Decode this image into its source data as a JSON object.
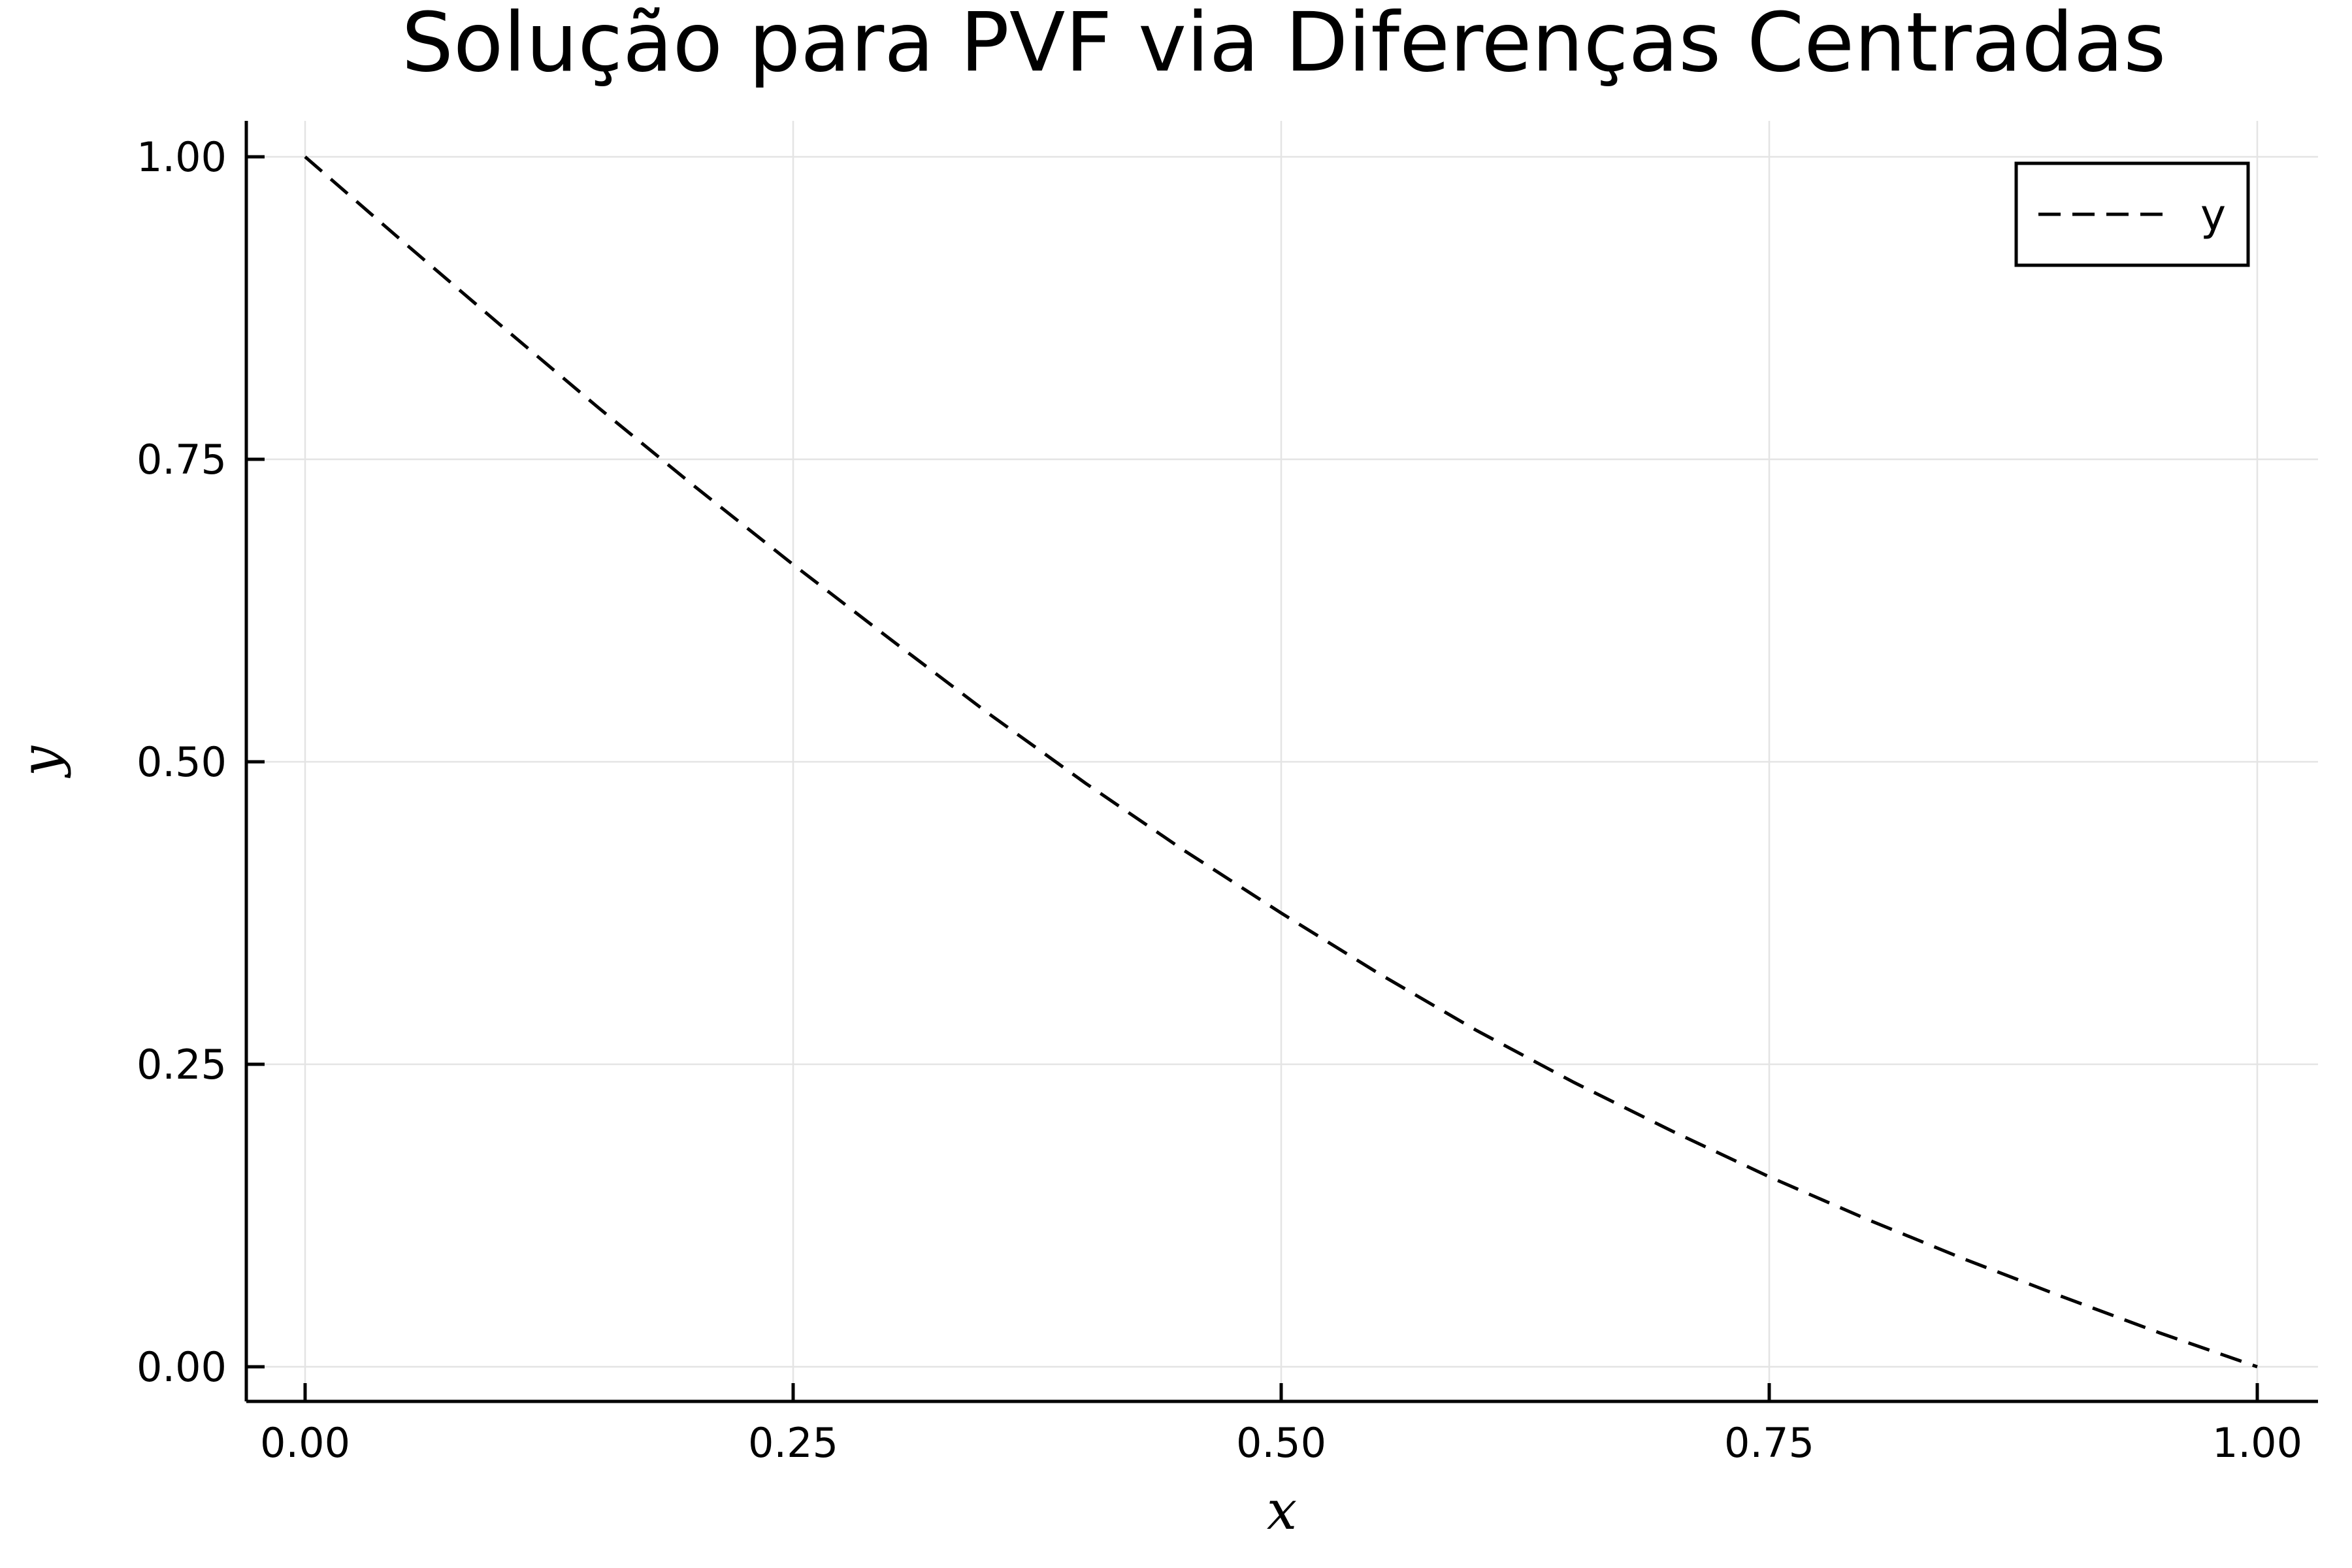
{
  "chart_data": {
    "type": "line",
    "title": "Solução para PVF via Diferenças Centradas",
    "xlabel": "x",
    "ylabel": "y",
    "xlim": [
      -0.03,
      1.03
    ],
    "ylim": [
      -0.03,
      1.03
    ],
    "xticks": [
      0.0,
      0.25,
      0.5,
      0.75,
      1.0
    ],
    "xtick_labels": [
      "0.00",
      "0.25",
      "0.50",
      "0.75",
      "1.00"
    ],
    "yticks": [
      0.0,
      0.25,
      0.5,
      0.75,
      1.0
    ],
    "ytick_labels": [
      "0.00",
      "0.25",
      "0.50",
      "0.75",
      "1.00"
    ],
    "grid": true,
    "legend_position": "top-right",
    "series": [
      {
        "name": "y",
        "line_style": "dashed",
        "color": "#000000",
        "x": [
          0.0,
          0.05,
          0.1,
          0.15,
          0.2,
          0.25,
          0.3,
          0.35,
          0.4,
          0.45,
          0.5,
          0.55,
          0.6,
          0.65,
          0.7,
          0.75,
          0.8,
          0.85,
          0.9,
          0.95,
          1.0
        ],
        "y": [
          1.0,
          0.93,
          0.861,
          0.793,
          0.727,
          0.663,
          0.601,
          0.54,
          0.482,
          0.427,
          0.375,
          0.325,
          0.278,
          0.235,
          0.195,
          0.157,
          0.122,
          0.089,
          0.058,
          0.028,
          0.0
        ]
      }
    ]
  }
}
